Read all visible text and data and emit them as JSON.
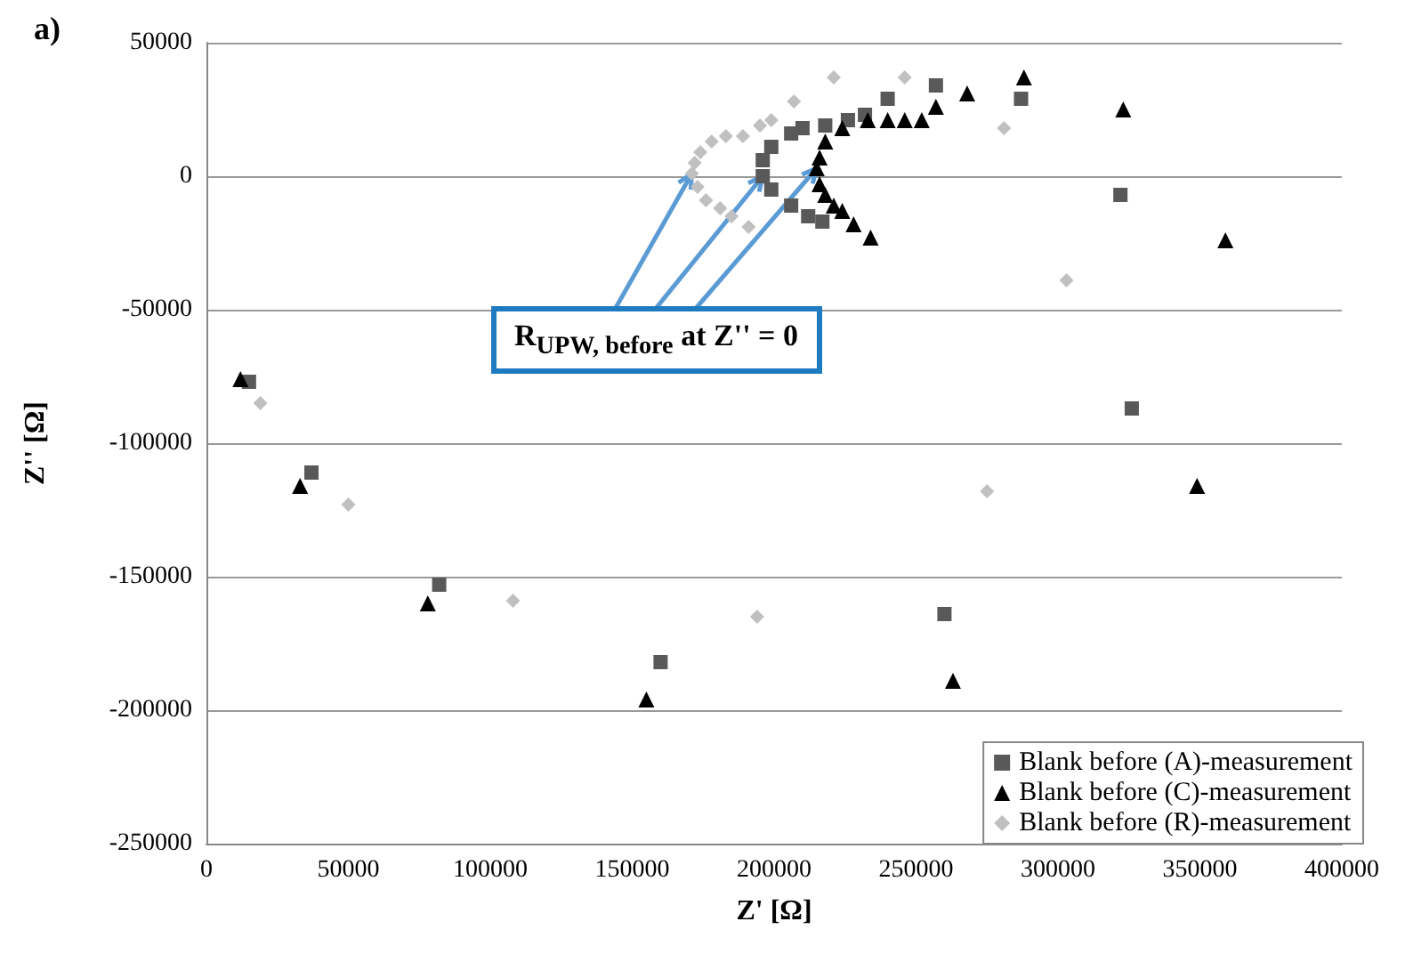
{
  "chart_data": {
    "type": "scatter",
    "title": "a)",
    "xlabel": "Z' [Ω]",
    "ylabel": "Z'' [Ω]",
    "annotations": [
      {
        "text": "R$_{UPW, before}$ at Z'' = 0",
        "x": 196000,
        "y": 0
      }
    ],
    "xlim": [
      0,
      400000
    ],
    "xticks": [
      0,
      50000,
      100000,
      150000,
      200000,
      250000,
      300000,
      350000,
      400000
    ],
    "ylim": [
      -250000,
      50000
    ],
    "yticks": [
      -250000,
      -200000,
      -150000,
      -100000,
      -50000,
      0,
      50000
    ],
    "grid": "y",
    "legend": "bottom right",
    "series": [
      {
        "name": "Blank before (A)-measurement",
        "color": "#595959",
        "marker": "square",
        "x": [
          15000,
          37000,
          82000,
          160000,
          260000,
          326000,
          322000,
          287000,
          257000,
          240000,
          232000,
          226000,
          218000,
          210000,
          206000,
          199000,
          196000,
          196000,
          199000,
          206000,
          212000,
          217000
        ],
        "values": [
          -77000,
          -111000,
          -153000,
          -182000,
          -164000,
          -87000,
          -7000,
          29000,
          34000,
          29000,
          23000,
          21000,
          19000,
          18000,
          16000,
          11000,
          6000,
          0,
          -5000,
          -11000,
          -15000,
          -17000
        ]
      },
      {
        "name": "Blank before (C)-measurement",
        "color": "#000000",
        "marker": "triangle",
        "x": [
          12000,
          33000,
          78000,
          155000,
          263000,
          349000,
          359000,
          323000,
          288000,
          268000,
          257000,
          252000,
          246000,
          240000,
          233000,
          224000,
          218000,
          216000,
          215000,
          216000,
          218000,
          221000,
          224000,
          228000,
          234000
        ],
        "values": [
          -76000,
          -116000,
          -160000,
          -196000,
          -189000,
          -116000,
          -24000,
          25000,
          37000,
          31000,
          26000,
          21000,
          21000,
          21000,
          21000,
          18000,
          13000,
          7000,
          3000,
          -3000,
          -7000,
          -11000,
          -13000,
          -18000,
          -23000
        ]
      },
      {
        "name": "Blank before (R)-measurement",
        "color": "#c0c0c0",
        "marker": "diamond",
        "x": [
          19000,
          50000,
          108000,
          194000,
          275000,
          303000,
          281000,
          246000,
          221000,
          207000,
          199000,
          195000,
          189000,
          183000,
          178000,
          174000,
          172000,
          171000,
          173000,
          176000,
          181000,
          185000,
          191000
        ],
        "values": [
          -85000,
          -123000,
          -159000,
          -165000,
          -118000,
          -39000,
          18000,
          37000,
          37000,
          28000,
          21000,
          19000,
          15000,
          15000,
          13000,
          9000,
          5000,
          1000,
          -4000,
          -9000,
          -12000,
          -15000,
          -19000
        ]
      }
    ]
  }
}
